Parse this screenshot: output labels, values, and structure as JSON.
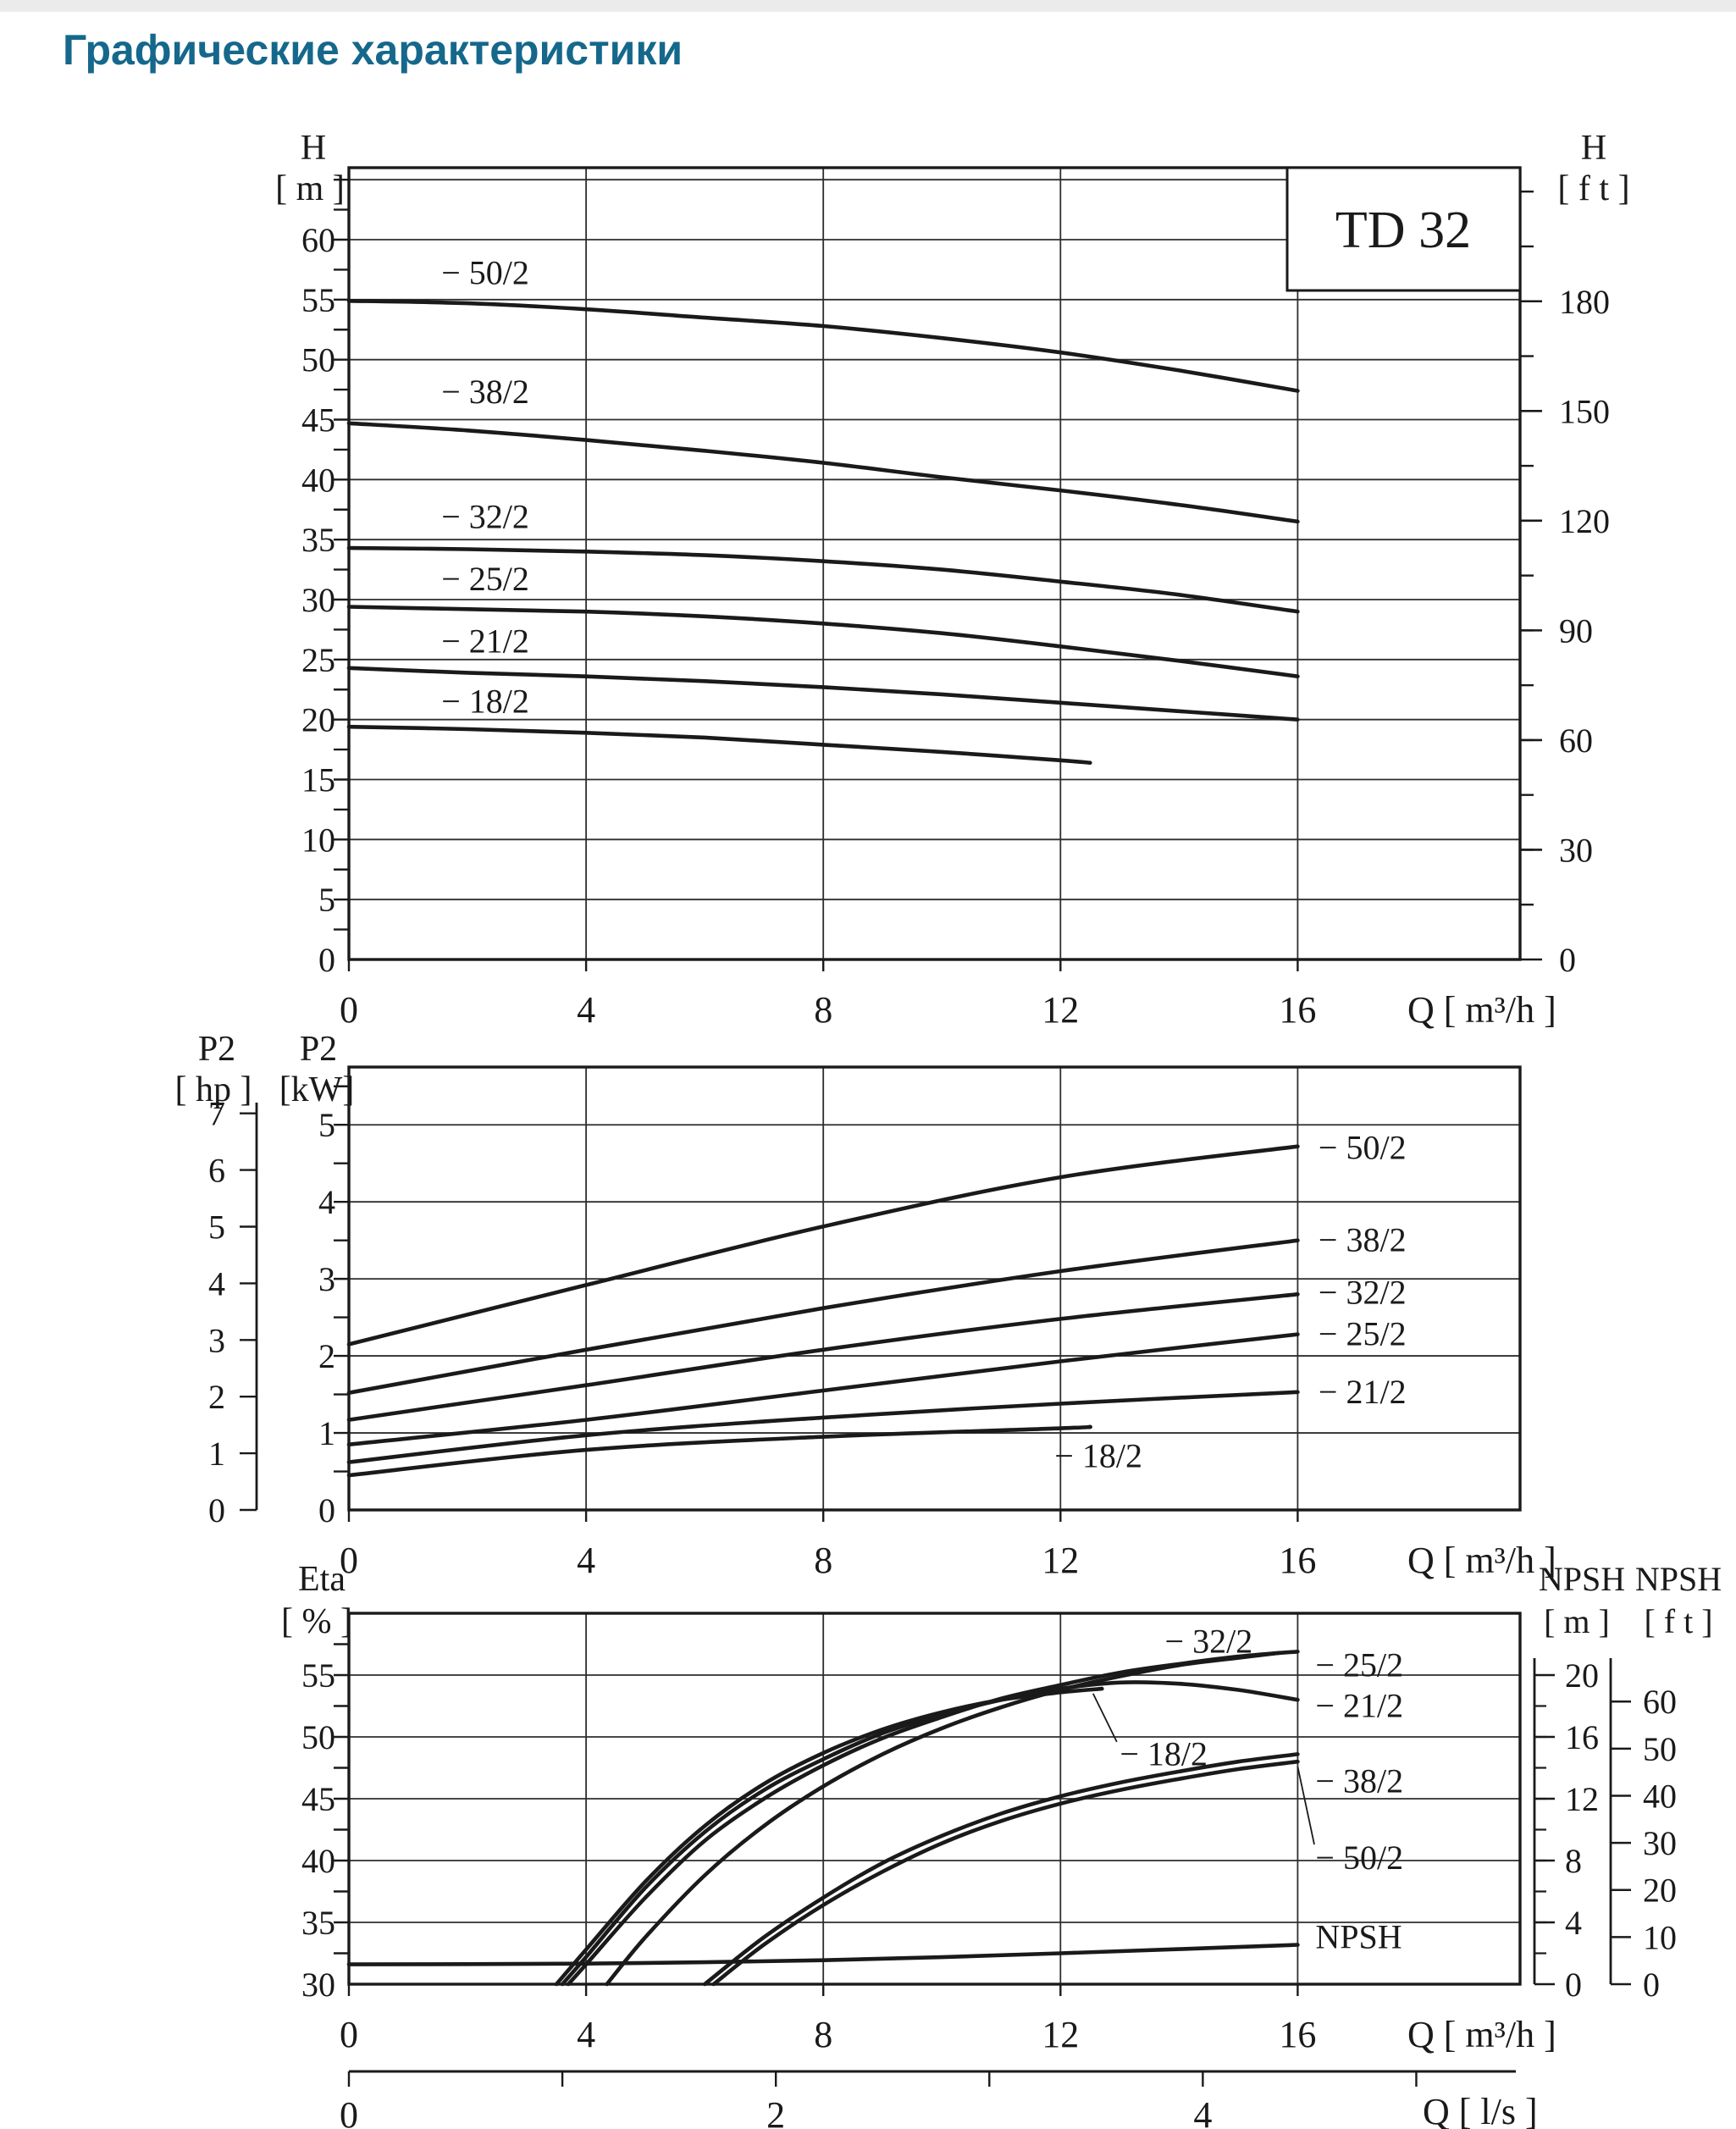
{
  "page": {
    "title": "Графические характеристики",
    "model": "TD 32"
  },
  "chart_data": [
    {
      "id": "head",
      "type": "line",
      "title": "TD 32",
      "x": {
        "label": "Q [ m³/h ]",
        "min": 0,
        "max": 19.75,
        "gridlines": [
          4,
          8,
          12,
          16
        ],
        "ticks": [
          0,
          4,
          8,
          12,
          16
        ]
      },
      "y": {
        "label": "H",
        "unit": "[ m ]",
        "min": 0,
        "max": 66,
        "grid_step": 5,
        "tick_labels": [
          60,
          55,
          50,
          45,
          40,
          35,
          30,
          25,
          20,
          15,
          10,
          5,
          0
        ],
        "minor_step": 2.5
      },
      "y2": {
        "label": "H",
        "unit": "[ f t ]",
        "tick_labels": [
          180,
          150,
          120,
          90,
          60,
          30,
          0
        ],
        "minor_step": 15,
        "max_tick": 210,
        "m_per_unit": 0.3048
      },
      "series": [
        {
          "name": "− 50/2",
          "points": [
            [
              0,
              54.9
            ],
            [
              2,
              54.7
            ],
            [
              4,
              54.2
            ],
            [
              6,
              53.5
            ],
            [
              8,
              52.8
            ],
            [
              10,
              51.8
            ],
            [
              12,
              50.6
            ],
            [
              14,
              49.1
            ],
            [
              16,
              47.4
            ]
          ]
        },
        {
          "name": "− 38/2",
          "points": [
            [
              0,
              44.7
            ],
            [
              2,
              44.1
            ],
            [
              4,
              43.3
            ],
            [
              6,
              42.4
            ],
            [
              8,
              41.4
            ],
            [
              10,
              40.2
            ],
            [
              12,
              39.1
            ],
            [
              14,
              37.9
            ],
            [
              16,
              36.5
            ]
          ]
        },
        {
          "name": "− 32/2",
          "points": [
            [
              0,
              34.3
            ],
            [
              2,
              34.2
            ],
            [
              4,
              34.0
            ],
            [
              6,
              33.7
            ],
            [
              8,
              33.2
            ],
            [
              10,
              32.5
            ],
            [
              12,
              31.5
            ],
            [
              14,
              30.4
            ],
            [
              16,
              29.0
            ]
          ]
        },
        {
          "name": "− 25/2",
          "points": [
            [
              0,
              29.4
            ],
            [
              2,
              29.2
            ],
            [
              4,
              29.0
            ],
            [
              6,
              28.6
            ],
            [
              8,
              28.0
            ],
            [
              10,
              27.2
            ],
            [
              12,
              26.1
            ],
            [
              14,
              24.9
            ],
            [
              16,
              23.6
            ]
          ]
        },
        {
          "name": "− 21/2",
          "points": [
            [
              0,
              24.3
            ],
            [
              2,
              23.9
            ],
            [
              4,
              23.6
            ],
            [
              6,
              23.2
            ],
            [
              8,
              22.7
            ],
            [
              10,
              22.1
            ],
            [
              12,
              21.4
            ],
            [
              14,
              20.7
            ],
            [
              16,
              20.0
            ]
          ]
        },
        {
          "name": "− 18/2",
          "points": [
            [
              0,
              19.4
            ],
            [
              2,
              19.2
            ],
            [
              4,
              18.9
            ],
            [
              6,
              18.5
            ],
            [
              8,
              17.9
            ],
            [
              10,
              17.3
            ],
            [
              12,
              16.6
            ],
            [
              12.5,
              16.4
            ]
          ]
        }
      ],
      "series_labels": [
        {
          "text": "− 50/2",
          "q": 2.3,
          "v": 57.2,
          "align": "middle"
        },
        {
          "text": "− 38/2",
          "q": 2.3,
          "v": 47.3,
          "align": "middle"
        },
        {
          "text": "− 32/2",
          "q": 2.3,
          "v": 36.9,
          "align": "middle"
        },
        {
          "text": "− 25/2",
          "q": 2.3,
          "v": 31.7,
          "align": "middle"
        },
        {
          "text": "− 21/2",
          "q": 2.3,
          "v": 26.5,
          "align": "middle"
        },
        {
          "text": "− 18/2",
          "q": 2.3,
          "v": 21.5,
          "align": "middle"
        }
      ]
    },
    {
      "id": "power",
      "type": "line",
      "x": {
        "label": "Q [ m³/h ]",
        "min": 0,
        "max": 19.75,
        "gridlines": [
          4,
          8,
          12,
          16
        ],
        "ticks": [
          0,
          4,
          8,
          12,
          16
        ]
      },
      "y": {
        "label": "P2",
        "unit": "[kW]",
        "min": 0,
        "max": 5.75,
        "grid_step": 1,
        "tick_labels": [
          5,
          4,
          3,
          2,
          1,
          0
        ],
        "minor_step": 0.5
      },
      "y_hp": {
        "label": "P2",
        "unit": "[ hp ]",
        "tick_labels": [
          7,
          6,
          5,
          4,
          3,
          2,
          1,
          0
        ],
        "kw_per_hp": 0.7355
      },
      "series": [
        {
          "name": "− 50/2",
          "points": [
            [
              0,
              2.15
            ],
            [
              4,
              2.92
            ],
            [
              8,
              3.68
            ],
            [
              12,
              4.32
            ],
            [
              16,
              4.72
            ]
          ]
        },
        {
          "name": "− 38/2",
          "points": [
            [
              0,
              1.52
            ],
            [
              4,
              2.08
            ],
            [
              8,
              2.62
            ],
            [
              12,
              3.1
            ],
            [
              16,
              3.5
            ]
          ]
        },
        {
          "name": "− 32/2",
          "points": [
            [
              0,
              1.17
            ],
            [
              4,
              1.62
            ],
            [
              8,
              2.08
            ],
            [
              12,
              2.48
            ],
            [
              16,
              2.8
            ]
          ]
        },
        {
          "name": "− 25/2",
          "points": [
            [
              0,
              0.85
            ],
            [
              4,
              1.17
            ],
            [
              8,
              1.55
            ],
            [
              12,
              1.93
            ],
            [
              16,
              2.28
            ]
          ]
        },
        {
          "name": "− 21/2",
          "points": [
            [
              0,
              0.62
            ],
            [
              4,
              0.97
            ],
            [
              8,
              1.2
            ],
            [
              12,
              1.38
            ],
            [
              16,
              1.53
            ]
          ]
        },
        {
          "name": "− 18/2",
          "points": [
            [
              0,
              0.45
            ],
            [
              4,
              0.78
            ],
            [
              8,
              0.95
            ],
            [
              12,
              1.06
            ],
            [
              12.5,
              1.08
            ]
          ]
        }
      ],
      "series_labels": [
        {
          "text": "− 50/2",
          "q": 16.35,
          "v": 4.7,
          "align": "start"
        },
        {
          "text": "− 38/2",
          "q": 16.35,
          "v": 3.5,
          "align": "start"
        },
        {
          "text": "− 32/2",
          "q": 16.35,
          "v": 2.82,
          "align": "start"
        },
        {
          "text": "− 25/2",
          "q": 16.35,
          "v": 2.28,
          "align": "start"
        },
        {
          "text": "− 21/2",
          "q": 16.35,
          "v": 1.53,
          "align": "start"
        },
        {
          "text": "− 18/2",
          "q": 11.9,
          "v": 0.7,
          "align": "start"
        }
      ]
    },
    {
      "id": "efficiency",
      "type": "line",
      "x": {
        "label": "Q [ m³/h ]",
        "min": 0,
        "max": 19.75,
        "gridlines": [
          4,
          8,
          12,
          16
        ],
        "ticks": [
          0,
          4,
          8,
          12,
          16
        ]
      },
      "x2": {
        "label": "Q [ l/s ]",
        "ticks": [
          0,
          1,
          2,
          3,
          4,
          5
        ],
        "tick_labels": [
          0,
          2,
          4
        ],
        "m3h_per_unit": 3.6
      },
      "y": {
        "label": "Eta",
        "unit": "[ % ]",
        "min": 30,
        "max": 60,
        "grid_step": 5,
        "tick_labels": [
          55,
          50,
          45,
          40,
          35,
          30
        ],
        "minor_step": 2.5
      },
      "y2m": {
        "label": "NPSH",
        "unit": "[ m ]",
        "tick_labels": [
          20,
          16,
          12,
          8,
          4,
          0
        ],
        "minor_step": 2,
        "max": 20
      },
      "y2ft": {
        "label": "NPSH",
        "unit": "[ f t ]",
        "tick_labels": [
          60,
          50,
          40,
          30,
          20,
          10,
          0
        ],
        "m_per_unit": 0.3048
      },
      "series": [
        {
          "name": "− 18/2",
          "axis": "eta",
          "points": [
            [
              3.5,
              30
            ],
            [
              4,
              32.8
            ],
            [
              5,
              38.3
            ],
            [
              6,
              42.8
            ],
            [
              7,
              46.2
            ],
            [
              8,
              48.7
            ],
            [
              9,
              50.6
            ],
            [
              10,
              52.0
            ],
            [
              11,
              53.0
            ],
            [
              12,
              53.6
            ],
            [
              12.7,
              53.9
            ]
          ]
        },
        {
          "name": "− 21/2",
          "axis": "eta",
          "points": [
            [
              3.6,
              30
            ],
            [
              4,
              32.2
            ],
            [
              5,
              37.8
            ],
            [
              6,
              42.3
            ],
            [
              7,
              45.7
            ],
            [
              8,
              48.2
            ],
            [
              9,
              50.3
            ],
            [
              10,
              51.8
            ],
            [
              11,
              53.0
            ],
            [
              12,
              53.9
            ],
            [
              13,
              54.4
            ],
            [
              14,
              54.3
            ],
            [
              15,
              53.8
            ],
            [
              16,
              53.0
            ]
          ]
        },
        {
          "name": "− 25/2",
          "axis": "eta",
          "points": [
            [
              3.7,
              30
            ],
            [
              4,
              31.6
            ],
            [
              5,
              37.0
            ],
            [
              6,
              41.6
            ],
            [
              7,
              45.0
            ],
            [
              8,
              47.7
            ],
            [
              9,
              49.9
            ],
            [
              10,
              51.6
            ],
            [
              11,
              53.1
            ],
            [
              12,
              54.2
            ],
            [
              13,
              55.2
            ],
            [
              14,
              55.9
            ],
            [
              15,
              56.5
            ],
            [
              16,
              56.9
            ]
          ]
        },
        {
          "name": "− 32/2",
          "axis": "eta",
          "points": [
            [
              4.35,
              30
            ],
            [
              5,
              33.8
            ],
            [
              6,
              38.8
            ],
            [
              7,
              42.8
            ],
            [
              8,
              46.0
            ],
            [
              9,
              48.6
            ],
            [
              10,
              50.7
            ],
            [
              11,
              52.4
            ],
            [
              12,
              53.8
            ],
            [
              13,
              54.9
            ],
            [
              14,
              55.8
            ],
            [
              15,
              56.4
            ],
            [
              15.7,
              56.8
            ]
          ]
        },
        {
          "name": "− 38/2",
          "axis": "eta",
          "points": [
            [
              6.0,
              30
            ],
            [
              7,
              33.8
            ],
            [
              8,
              37.0
            ],
            [
              9,
              39.8
            ],
            [
              10,
              42.0
            ],
            [
              11,
              43.8
            ],
            [
              12,
              45.2
            ],
            [
              13,
              46.3
            ],
            [
              14,
              47.2
            ],
            [
              15,
              48.0
            ],
            [
              16,
              48.6
            ]
          ]
        },
        {
          "name": "− 50/2",
          "axis": "eta",
          "points": [
            [
              6.15,
              30
            ],
            [
              7,
              33.2
            ],
            [
              8,
              36.4
            ],
            [
              9,
              39.1
            ],
            [
              10,
              41.4
            ],
            [
              11,
              43.2
            ],
            [
              12,
              44.6
            ],
            [
              13,
              45.7
            ],
            [
              14,
              46.6
            ],
            [
              15,
              47.4
            ],
            [
              16,
              48.0
            ]
          ]
        },
        {
          "name": "NPSH",
          "axis": "npsh_m",
          "points": [
            [
              0,
              1.28
            ],
            [
              2,
              1.3
            ],
            [
              4,
              1.33
            ],
            [
              6,
              1.42
            ],
            [
              8,
              1.55
            ],
            [
              10,
              1.75
            ],
            [
              12,
              2.0
            ],
            [
              14,
              2.27
            ],
            [
              16,
              2.55
            ]
          ]
        }
      ],
      "series_labels": [
        {
          "text": "− 32/2",
          "q": 14.5,
          "v": 57.7,
          "align": "middle"
        },
        {
          "text": "− 25/2",
          "q": 16.3,
          "v": 55.8,
          "align": "start"
        },
        {
          "text": "− 21/2",
          "q": 16.3,
          "v": 52.5,
          "align": "start"
        },
        {
          "text": "− 38/2",
          "q": 16.3,
          "v": 46.4,
          "align": "start"
        },
        {
          "text": "− 50/2",
          "q": 16.3,
          "v": 40.2,
          "align": "start"
        },
        {
          "text": "− 18/2",
          "q": 13.0,
          "v": 48.6,
          "align": "start"
        },
        {
          "text": "NPSH",
          "q": 16.3,
          "v": 33.8,
          "align": "start"
        }
      ],
      "pointers": [
        {
          "for": "− 50/2",
          "points": [
            [
              16.28,
              41.3
            ],
            [
              16.0,
              47.6
            ]
          ]
        },
        {
          "for": "− 18/2",
          "points": [
            [
              12.95,
              49.6
            ],
            [
              12.55,
              53.5
            ]
          ]
        }
      ]
    }
  ]
}
